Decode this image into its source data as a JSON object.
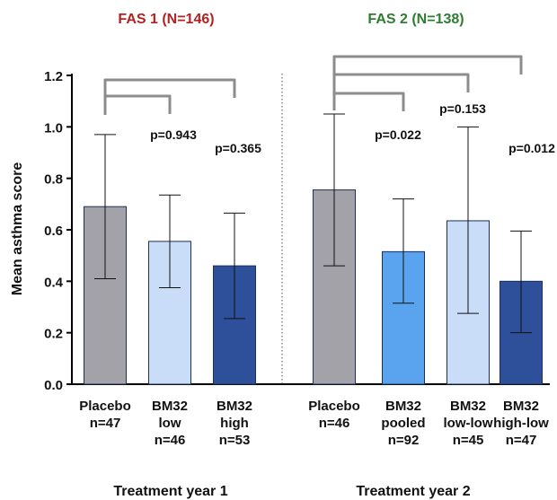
{
  "chart_data": {
    "type": "bar",
    "ylabel": "Mean asthma score",
    "ylim": [
      0,
      1.2
    ],
    "yticks": [
      "0.0",
      "0.2",
      "0.4",
      "0.6",
      "0.8",
      "1.0",
      "1.2"
    ],
    "groups": [
      {
        "title": "FAS 1 (N=146)",
        "title_color": "#b22222",
        "footer": "Treatment year 1",
        "bars": [
          {
            "label": [
              "Placebo",
              "n=47"
            ],
            "value": 0.69,
            "err_low": 0.41,
            "err_high": 0.97,
            "color": "#a2a2a8"
          },
          {
            "label": [
              "BM32",
              "low",
              "n=46"
            ],
            "value": 0.555,
            "err_low": 0.375,
            "err_high": 0.735,
            "color": "#c9dcf8"
          },
          {
            "label": [
              "BM32",
              "high",
              "n=53"
            ],
            "value": 0.46,
            "err_low": 0.255,
            "err_high": 0.665,
            "color": "#2e4f99"
          }
        ],
        "comparisons": [
          {
            "from": 0,
            "to": 1,
            "p": "p=0.943"
          },
          {
            "from": 0,
            "to": 2,
            "p": "p=0.365"
          }
        ]
      },
      {
        "title": "FAS 2 (N=138)",
        "title_color": "#2e7d32",
        "footer": "Treatment year 2",
        "bars": [
          {
            "label": [
              "Placebo",
              "n=46"
            ],
            "value": 0.755,
            "err_low": 0.46,
            "err_high": 1.05,
            "color": "#a2a2a8"
          },
          {
            "label": [
              "BM32",
              "pooled",
              "n=92"
            ],
            "value": 0.515,
            "err_low": 0.315,
            "err_high": 0.72,
            "color": "#5aa3ef"
          },
          {
            "label": [
              "BM32",
              "low-low",
              "n=45"
            ],
            "value": 0.635,
            "err_low": 0.275,
            "err_high": 1.0,
            "color": "#c9dcf8"
          },
          {
            "label": [
              "BM32",
              "high-low",
              "n=47"
            ],
            "value": 0.4,
            "err_low": 0.2,
            "err_high": 0.595,
            "color": "#2e4f99"
          }
        ],
        "comparisons": [
          {
            "from": 0,
            "to": 1,
            "p": "p=0.022"
          },
          {
            "from": 0,
            "to": 2,
            "p": "p=0.153"
          },
          {
            "from": 0,
            "to": 3,
            "p": "p=0.012"
          }
        ]
      }
    ]
  }
}
